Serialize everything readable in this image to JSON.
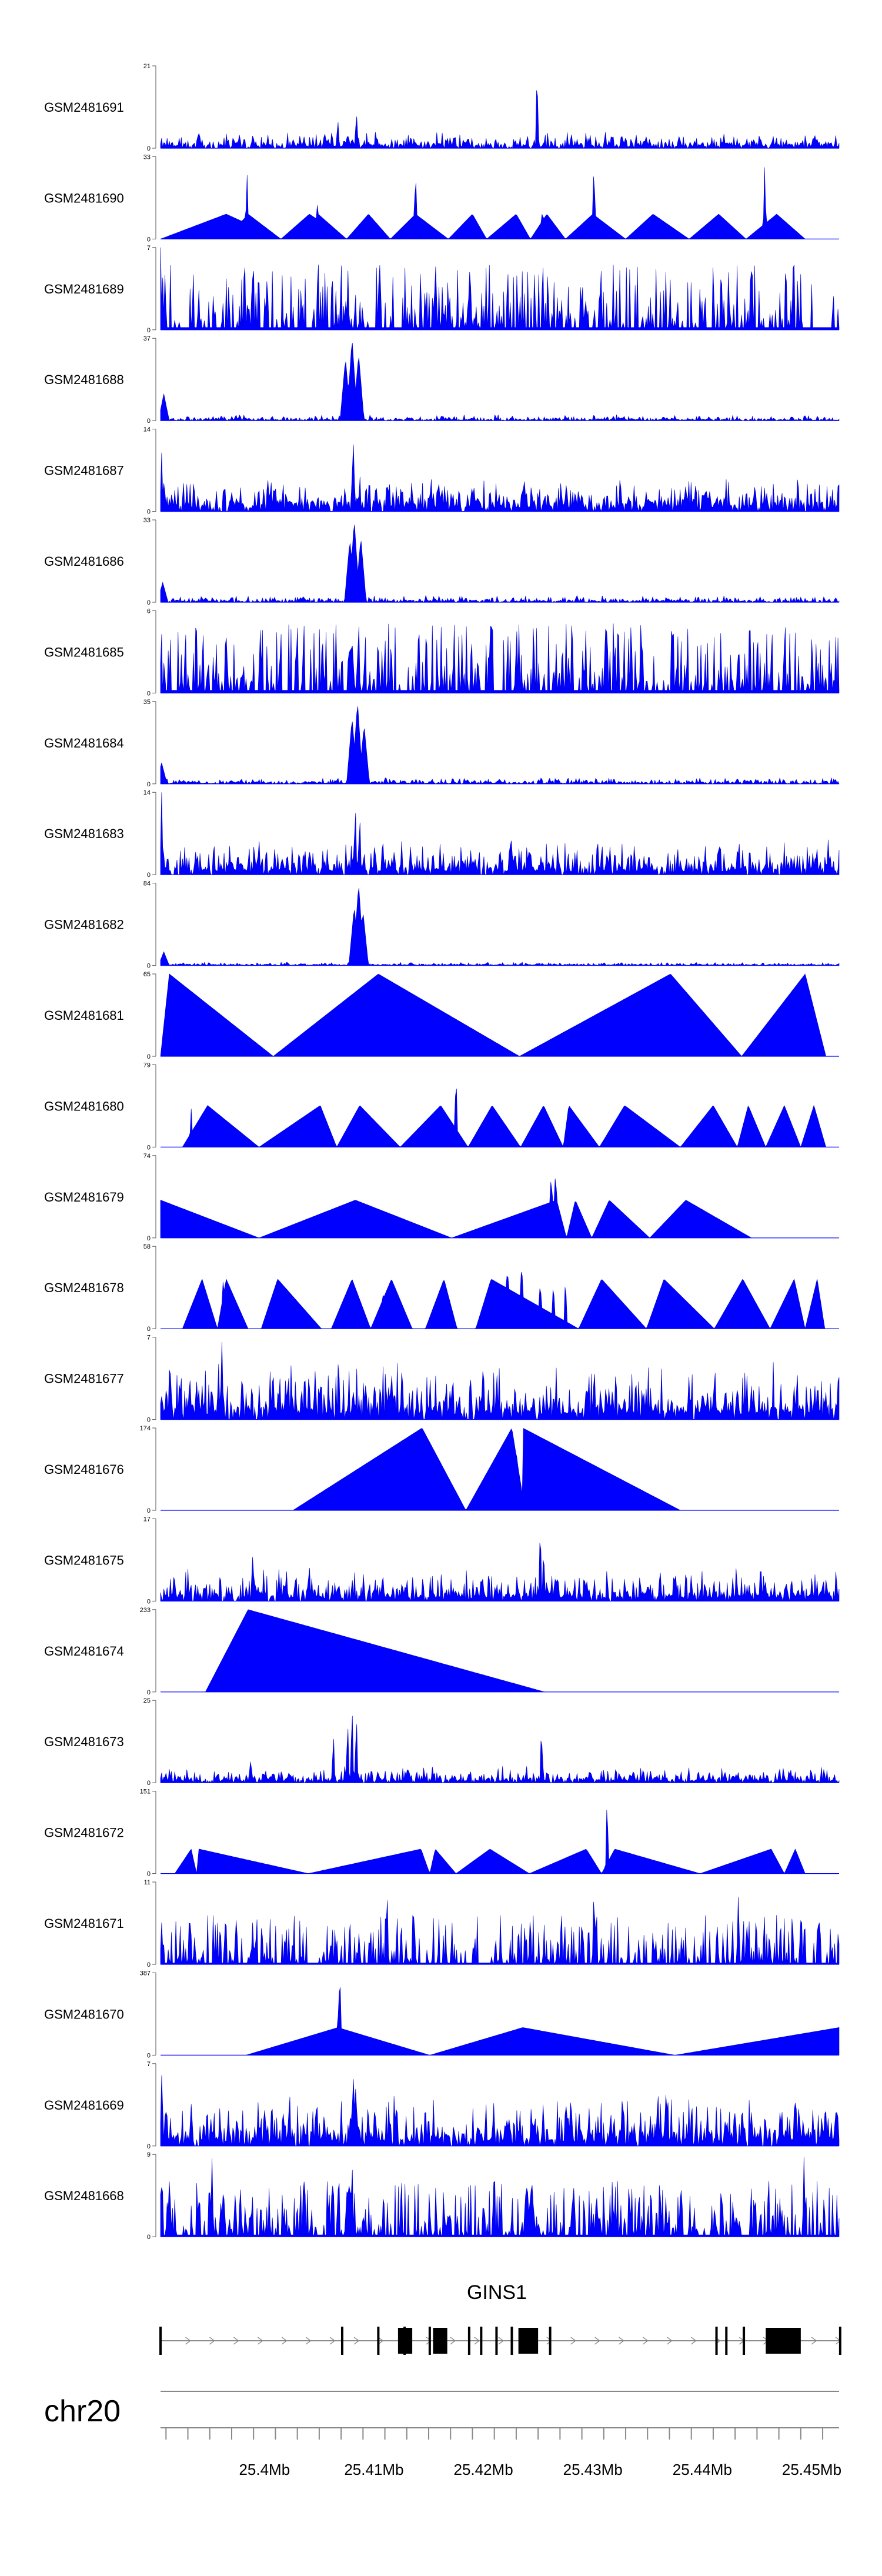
{
  "chart_data": {
    "type": "area",
    "chromosome": "chr20",
    "gene": {
      "name": "GINS1",
      "exons": [
        [
          25.4122,
          25.4135
        ],
        [
          25.4154,
          25.4167
        ],
        [
          25.4232,
          25.425
        ],
        [
          25.4458,
          25.449
        ]
      ],
      "markers": [
        25.3905,
        25.4071,
        25.4104,
        25.4128,
        25.4151,
        25.4187,
        25.4198,
        25.4212,
        25.4226,
        25.4261,
        25.4413,
        25.4422,
        25.4438,
        25.4526
      ]
    },
    "x_ticks": [
      "25.4Mb",
      "25.41Mb",
      "25.42Mb",
      "25.43Mb",
      "25.44Mb",
      "25.45Mb"
    ],
    "x_tick_values": [
      25.4,
      25.41,
      25.42,
      25.43,
      25.44,
      25.45
    ],
    "xlim": [
      25.3905,
      25.4525
    ],
    "tracks": [
      {
        "label": "GSM2481691",
        "ymin_label": "0",
        "ymax_label": "21",
        "ymax": 21,
        "mode": "noise",
        "base": 1.2,
        "peaks": [
          [
            25.4067,
            8
          ],
          [
            25.4084,
            10
          ],
          [
            25.4249,
            21
          ]
        ]
      },
      {
        "label": "GSM2481690",
        "ymin_label": "0",
        "ymax_label": "33",
        "ymax": 33,
        "mode": "tri",
        "base": 0,
        "tri": [
          [
            25.3905,
            25.3965,
            25.4015
          ],
          [
            25.3965,
            25.3985,
            25.4015
          ],
          [
            25.4015,
            25.4041,
            25.4075
          ],
          [
            25.4041,
            25.4049,
            25.4075
          ],
          [
            25.4075,
            25.4095,
            25.4115
          ],
          [
            25.4115,
            25.4138,
            25.4168
          ],
          [
            25.4168,
            25.419,
            25.4203
          ],
          [
            25.4203,
            25.423,
            25.4243
          ],
          [
            25.4243,
            25.4258,
            25.4275
          ],
          [
            25.4275,
            25.43,
            25.433
          ],
          [
            25.433,
            25.4355,
            25.4388
          ],
          [
            25.4388,
            25.4415,
            25.444
          ],
          [
            25.444,
            25.4468,
            25.4494
          ]
        ],
        "tri_h": 10,
        "peaks": [
          [
            25.3984,
            28
          ],
          [
            25.4048,
            16
          ],
          [
            25.4138,
            30
          ],
          [
            25.4254,
            14
          ],
          [
            25.4301,
            33
          ],
          [
            25.4457,
            31
          ]
        ]
      },
      {
        "label": "GSM2481689",
        "ymin_label": "0",
        "ymax_label": "7",
        "ymax": 7,
        "mode": "sparse",
        "base": 0,
        "density": 0.45,
        "amp": 5,
        "peaks": [
          [
            25.3905,
            7
          ],
          [
            25.4105,
            7
          ]
        ]
      },
      {
        "label": "GSM2481688",
        "ymin_label": "0",
        "ymax_label": "37",
        "ymax": 37,
        "mode": "noise",
        "base": 0.8,
        "peaks": [
          [
            25.3908,
            12
          ],
          [
            25.4074,
            28
          ],
          [
            25.408,
            37
          ],
          [
            25.4086,
            30
          ]
        ],
        "wide": true
      },
      {
        "label": "GSM2481687",
        "ymin_label": "0",
        "ymax_label": "14",
        "ymax": 14,
        "mode": "noise",
        "base": 1.8,
        "peaks": [
          [
            25.3906,
            10
          ],
          [
            25.4081,
            14
          ]
        ]
      },
      {
        "label": "GSM2481686",
        "ymin_label": "0",
        "ymax_label": "33",
        "ymax": 33,
        "mode": "noise",
        "base": 0.8,
        "peaks": [
          [
            25.3907,
            8
          ],
          [
            25.4078,
            25
          ],
          [
            25.4082,
            33
          ],
          [
            25.4088,
            26
          ]
        ],
        "wide": true
      },
      {
        "label": "GSM2481685",
        "ymin_label": "0",
        "ymax_label": "6",
        "ymax": 6,
        "mode": "sparse",
        "base": 0,
        "density": 0.5,
        "amp": 4.5,
        "peaks": [
          [
            25.4335,
            6
          ],
          [
            25.4086,
            6
          ]
        ]
      },
      {
        "label": "GSM2481684",
        "ymin_label": "0",
        "ymax_label": "35",
        "ymax": 35,
        "mode": "noise",
        "base": 0.8,
        "peaks": [
          [
            25.3906,
            9
          ],
          [
            25.408,
            28
          ],
          [
            25.4085,
            35
          ],
          [
            25.4091,
            25
          ]
        ],
        "wide": true
      },
      {
        "label": "GSM2481683",
        "ymin_label": "0",
        "ymax_label": "14",
        "ymax": 14,
        "mode": "noise",
        "base": 1.8,
        "peaks": [
          [
            25.3906,
            14
          ],
          [
            25.4083,
            13
          ],
          [
            25.4087,
            11
          ]
        ]
      },
      {
        "label": "GSM2481682",
        "ymin_label": "0",
        "ymax_label": "84",
        "ymax": 84,
        "mode": "noise",
        "base": 1.0,
        "peaks": [
          [
            25.3908,
            14
          ],
          [
            25.4082,
            60
          ],
          [
            25.4086,
            84
          ],
          [
            25.409,
            55
          ]
        ],
        "wide": true
      },
      {
        "label": "GSM2481681",
        "ymin_label": "0",
        "ymax_label": "65",
        "ymax": 65,
        "mode": "tri",
        "base": 0,
        "tri": [
          [
            25.3905,
            25.3913,
            25.4008
          ],
          [
            25.4008,
            25.4104,
            25.4233
          ],
          [
            25.4233,
            25.4371,
            25.4436
          ],
          [
            25.4436,
            25.4494,
            25.4513
          ]
        ],
        "tri_h": 65,
        "peaks": []
      },
      {
        "label": "GSM2481680",
        "ymin_label": "0",
        "ymax_label": "79",
        "ymax": 79,
        "mode": "tri",
        "base": 0,
        "tri": [
          [
            25.3925,
            25.3948,
            25.3995
          ],
          [
            25.3995,
            25.4051,
            25.4066
          ],
          [
            25.4066,
            25.4087,
            25.4124
          ],
          [
            25.4124,
            25.4161,
            25.4186
          ],
          [
            25.4186,
            25.4208,
            25.4234
          ],
          [
            25.4234,
            25.4255,
            25.4273
          ],
          [
            25.4273,
            25.4278,
            25.4306
          ],
          [
            25.4306,
            25.4329,
            25.438
          ],
          [
            25.438,
            25.441,
            25.4432
          ],
          [
            25.4432,
            25.4442,
            25.4458
          ],
          [
            25.4458,
            25.4475,
            25.449
          ],
          [
            25.449,
            25.4502,
            25.4513
          ]
        ],
        "tri_h": 40,
        "peaks": [
          [
            25.3933,
            38
          ],
          [
            25.4052,
            38
          ],
          [
            25.4175,
            79
          ],
          [
            25.4279,
            38
          ]
        ]
      },
      {
        "label": "GSM2481679",
        "ymin_label": "0",
        "ymax_label": "74",
        "ymax": 74,
        "mode": "tri",
        "base": 0,
        "tri": [
          [
            25.3905,
            25.3905,
            25.3995
          ],
          [
            25.3995,
            25.4083,
            25.4171
          ],
          [
            25.4171,
            25.4267,
            25.4276
          ],
          [
            25.4276,
            25.4284,
            25.4299
          ],
          [
            25.4299,
            25.4315,
            25.4352
          ],
          [
            25.4352,
            25.4385,
            25.4445
          ]
        ],
        "tri_h": 34,
        "peaks": [
          [
            25.4262,
            70
          ],
          [
            25.4266,
            74
          ],
          [
            25.4316,
            34
          ],
          [
            25.4385,
            34
          ]
        ]
      },
      {
        "label": "GSM2481678",
        "ymin_label": "0",
        "ymax_label": "58",
        "ymax": 58,
        "mode": "tri",
        "base": 0,
        "tri": [
          [
            25.3925,
            25.3943,
            25.3957
          ],
          [
            25.3957,
            25.3965,
            25.3985
          ],
          [
            25.3997,
            25.4012,
            25.4052
          ],
          [
            25.4061,
            25.408,
            25.4097
          ],
          [
            25.4097,
            25.4116,
            25.4135
          ],
          [
            25.4147,
            25.4164,
            25.4176
          ],
          [
            25.4193,
            25.4207,
            25.4287
          ],
          [
            25.4287,
            25.4308,
            25.4349
          ],
          [
            25.4349,
            25.4365,
            25.4411
          ],
          [
            25.4411,
            25.4437,
            25.4462
          ],
          [
            25.4462,
            25.4484,
            25.4494
          ],
          [
            25.4494,
            25.4505,
            25.4512
          ]
        ],
        "tri_h": 35,
        "peaks": [
          [
            25.3962,
            35
          ],
          [
            25.4108,
            30
          ],
          [
            25.4212,
            40
          ],
          [
            25.4222,
            55
          ],
          [
            25.4235,
            58
          ],
          [
            25.4252,
            40
          ],
          [
            25.4264,
            38
          ],
          [
            25.4275,
            40
          ],
          [
            25.4505,
            28
          ]
        ]
      },
      {
        "label": "GSM2481677",
        "ymin_label": "0",
        "ymax_label": "7",
        "ymax": 7,
        "mode": "noise",
        "base": 1.5,
        "peaks": [
          [
            25.3961,
            7
          ],
          [
            25.3958,
            5
          ],
          [
            25.4008,
            4
          ]
        ]
      },
      {
        "label": "GSM2481676",
        "ymin_label": "0",
        "ymax_label": "174",
        "ymax": 174,
        "mode": "tri",
        "base": 0,
        "tri": [
          [
            25.4026,
            25.4144,
            25.4184
          ],
          [
            25.4184,
            25.4226,
            25.4238
          ],
          [
            25.4238,
            25.4236,
            25.438
          ]
        ],
        "tri_h": 174,
        "peaks": [
          [
            25.4226,
            174
          ],
          [
            25.423,
            174
          ]
        ]
      },
      {
        "label": "GSM2481675",
        "ymin_label": "0",
        "ymax_label": "17",
        "ymax": 17,
        "mode": "noise",
        "base": 2.0,
        "peaks": [
          [
            25.3989,
            10
          ],
          [
            25.402,
            7
          ],
          [
            25.4041,
            8
          ],
          [
            25.4252,
            17
          ],
          [
            25.4255,
            12
          ],
          [
            25.4343,
            6
          ]
        ]
      },
      {
        "label": "GSM2481674",
        "ymin_label": "0",
        "ymax_label": "233",
        "ymax": 233,
        "mode": "tri",
        "base": 0,
        "tri": [
          [
            25.3946,
            25.3985,
            25.4256
          ]
        ],
        "tri_h": 233,
        "peaks": []
      },
      {
        "label": "GSM2481673",
        "ymin_label": "0",
        "ymax_label": "25",
        "ymax": 25,
        "mode": "noise",
        "base": 1.5,
        "peaks": [
          [
            25.3987,
            7
          ],
          [
            25.4063,
            16
          ],
          [
            25.4076,
            20
          ],
          [
            25.408,
            25
          ],
          [
            25.4084,
            22
          ],
          [
            25.4253,
            18
          ]
        ]
      },
      {
        "label": "GSM2481672",
        "ymin_label": "0",
        "ymax_label": "151",
        "ymax": 151,
        "mode": "tri",
        "base": 0,
        "tri": [
          [
            25.3918,
            25.3933,
            25.3938
          ],
          [
            25.3938,
            25.394,
            25.404
          ],
          [
            25.404,
            25.4143,
            25.4151
          ],
          [
            25.4151,
            25.4156,
            25.4175
          ],
          [
            25.4175,
            25.4206,
            25.4242
          ],
          [
            25.4242,
            25.4294,
            25.4308
          ],
          [
            25.4308,
            25.432,
            25.4398
          ],
          [
            25.4398,
            25.4463,
            25.4475
          ],
          [
            25.4475,
            25.4485,
            25.4494
          ]
        ],
        "tri_h": 45,
        "peaks": [
          [
            25.4313,
            151
          ],
          [
            25.4204,
            42
          ]
        ]
      },
      {
        "label": "GSM2481671",
        "ymin_label": "0",
        "ymax_label": "11",
        "ymax": 11,
        "mode": "sparse",
        "base": 0,
        "density": 0.5,
        "amp": 6,
        "peaks": [
          [
            25.4112,
            11
          ],
          [
            25.4301,
            11
          ],
          [
            25.4433,
            10
          ]
        ]
      },
      {
        "label": "GSM2481670",
        "ymin_label": "0",
        "ymax_label": "387",
        "ymax": 387,
        "mode": "tri",
        "base": 0,
        "tri": [
          [
            25.3983,
            25.4067,
            25.4067
          ],
          [
            25.4067,
            25.4067,
            25.4151
          ],
          [
            25.4151,
            25.4236,
            25.4375
          ],
          [
            25.4375,
            25.4525,
            25.4525
          ]
        ],
        "tri_h": 130,
        "peaks": [
          [
            25.4069,
            387
          ],
          [
            25.4068,
            360
          ]
        ]
      },
      {
        "label": "GSM2481669",
        "ymin_label": "0",
        "ymax_label": "7",
        "ymax": 7,
        "mode": "noise",
        "base": 1.3,
        "peaks": [
          [
            25.3906,
            6
          ],
          [
            25.4081,
            7
          ],
          [
            25.4083,
            6
          ],
          [
            25.412,
            4
          ],
          [
            25.428,
            5
          ]
        ]
      },
      {
        "label": "GSM2481668",
        "ymin_label": "0",
        "ymax_label": "9",
        "ymax": 9,
        "mode": "sparse",
        "base": 0,
        "density": 0.55,
        "amp": 5.5,
        "peaks": [
          [
            25.3952,
            9
          ],
          [
            25.408,
            9
          ],
          [
            25.421,
            9
          ],
          [
            25.4493,
            9
          ]
        ]
      }
    ]
  }
}
